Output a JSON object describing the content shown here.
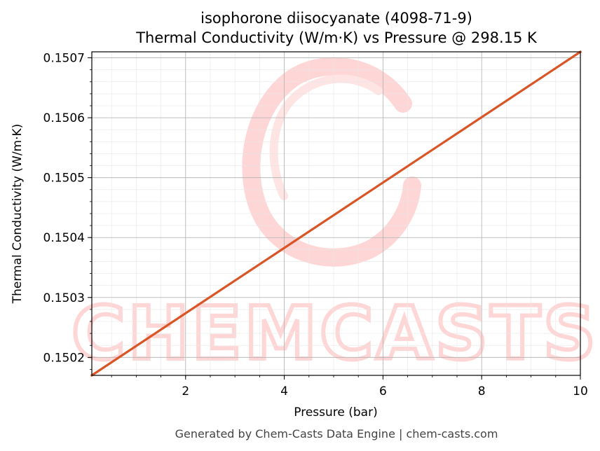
{
  "chart_data": {
    "type": "line",
    "title_line1": "isophorone diisocyanate (4098-71-9)",
    "title_line2": "Thermal Conductivity (W/m·K) vs Pressure @ 298.15 K",
    "xlabel": "Pressure (bar)",
    "ylabel": "Thermal Conductivity (W/m·K)",
    "xlim": [
      0.1,
      10
    ],
    "ylim": [
      0.15017,
      0.15071
    ],
    "x_ticks": [
      2,
      4,
      6,
      8,
      10
    ],
    "x_tick_labels": [
      "2",
      "4",
      "6",
      "8",
      "10"
    ],
    "y_ticks": [
      0.1502,
      0.1503,
      0.1504,
      0.1505,
      0.1506,
      0.1507
    ],
    "y_tick_labels": [
      "0.1502",
      "0.1503",
      "0.1504",
      "0.1505",
      "0.1506",
      "0.1507"
    ],
    "grid": true,
    "series": [
      {
        "x": [
          0.1,
          10
        ],
        "y": [
          0.15017,
          0.15071
        ],
        "color": "#d95525"
      }
    ]
  },
  "watermark": {
    "text": "CHEMCASTS",
    "color": "#ffd6d6"
  },
  "footer": "Generated by Chem-Casts Data Engine | chem-casts.com"
}
